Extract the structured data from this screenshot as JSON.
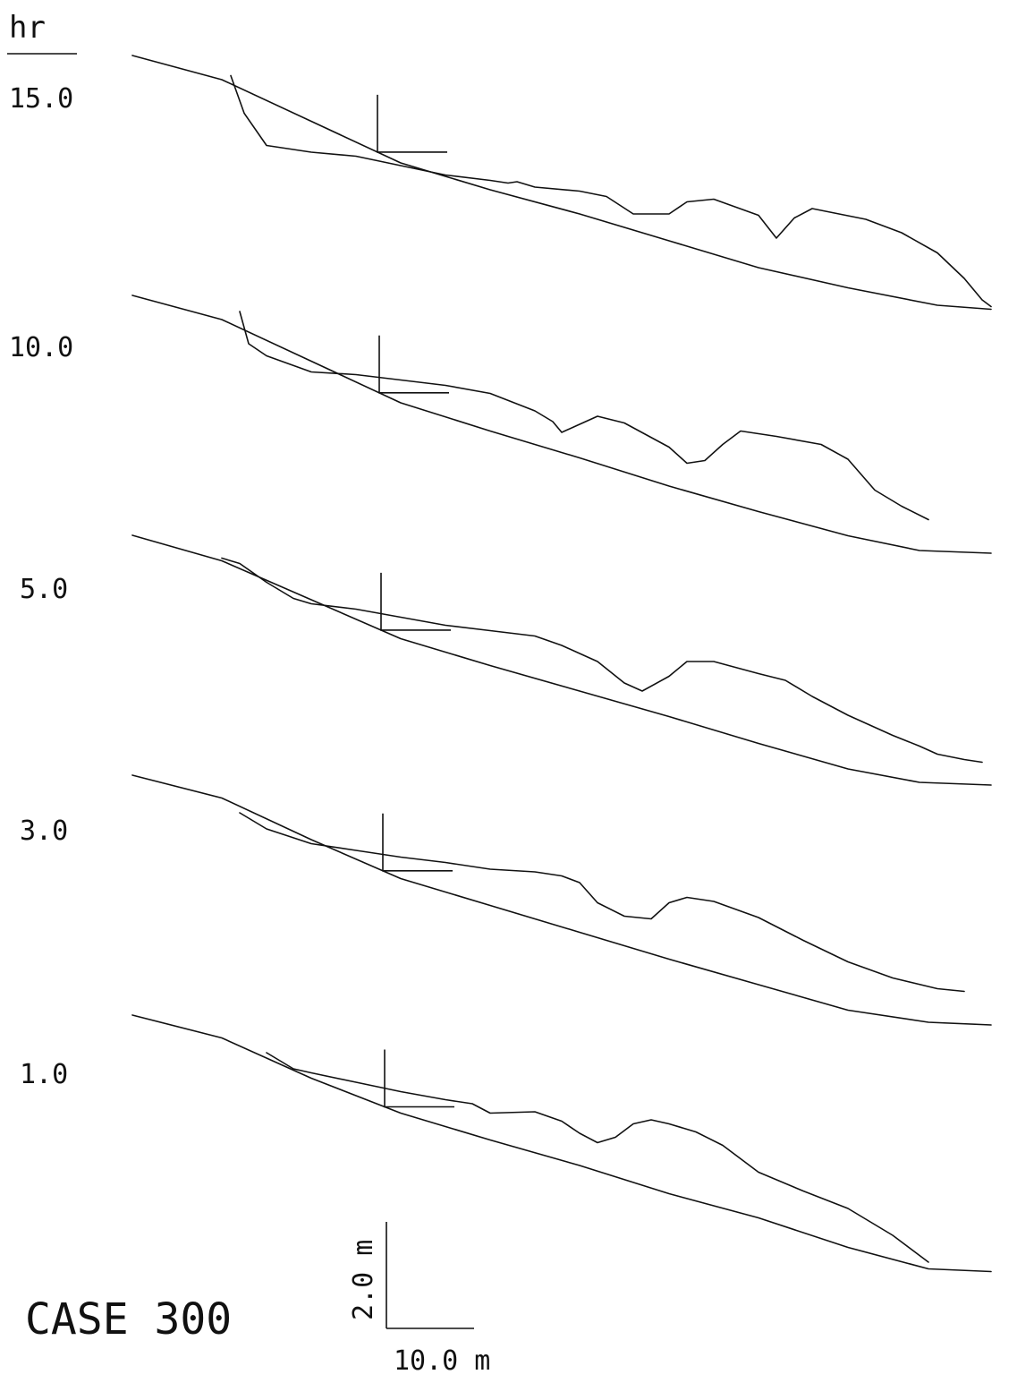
{
  "chart_data": {
    "type": "line",
    "title": "",
    "ylabel": "hr",
    "caption": "CASE 300",
    "scale_bar": {
      "vertical_label": "2.0 m",
      "horizontal_label": "10.0 m"
    },
    "panels": [
      {
        "time_label": "15.0",
        "initial_profile": [
          [
            0,
            0.0
          ],
          [
            10,
            -0.9
          ],
          [
            20,
            -2.45
          ],
          [
            30,
            -4.0
          ],
          [
            40,
            -5.0
          ],
          [
            50,
            -5.9
          ],
          [
            60,
            -6.9
          ],
          [
            70,
            -7.9
          ],
          [
            80,
            -8.65
          ],
          [
            90,
            -9.3
          ],
          [
            96,
            -9.45
          ]
        ],
        "bed_profile": [
          [
            11,
            -0.75
          ],
          [
            12.5,
            -2.15
          ],
          [
            15,
            -3.35
          ],
          [
            20,
            -3.6
          ],
          [
            25,
            -3.75
          ],
          [
            30,
            -4.1
          ],
          [
            35,
            -4.45
          ],
          [
            40,
            -4.65
          ],
          [
            42,
            -4.75
          ],
          [
            43,
            -4.7
          ],
          [
            45,
            -4.9
          ],
          [
            50,
            -5.05
          ],
          [
            53,
            -5.25
          ],
          [
            56,
            -5.9
          ],
          [
            60,
            -5.9
          ],
          [
            62,
            -5.45
          ],
          [
            65,
            -5.35
          ],
          [
            70,
            -5.95
          ],
          [
            72,
            -6.8
          ],
          [
            74,
            -6.05
          ],
          [
            76,
            -5.7
          ],
          [
            82,
            -6.1
          ],
          [
            86,
            -6.6
          ],
          [
            90,
            -7.35
          ],
          [
            93,
            -8.3
          ],
          [
            95,
            -9.1
          ],
          [
            96,
            -9.35
          ]
        ]
      },
      {
        "time_label": "10.0",
        "initial_profile": [
          [
            0,
            0.0
          ],
          [
            10,
            -0.9
          ],
          [
            20,
            -2.45
          ],
          [
            30,
            -4.0
          ],
          [
            40,
            -5.05
          ],
          [
            50,
            -6.05
          ],
          [
            60,
            -7.1
          ],
          [
            70,
            -8.05
          ],
          [
            80,
            -8.95
          ],
          [
            88,
            -9.5
          ],
          [
            96,
            -9.6
          ]
        ],
        "bed_profile": [
          [
            12,
            -0.6
          ],
          [
            13,
            -1.8
          ],
          [
            15,
            -2.25
          ],
          [
            20,
            -2.85
          ],
          [
            25,
            -2.95
          ],
          [
            30,
            -3.15
          ],
          [
            35,
            -3.35
          ],
          [
            40,
            -3.65
          ],
          [
            45,
            -4.3
          ],
          [
            47,
            -4.7
          ],
          [
            48,
            -5.1
          ],
          [
            50,
            -4.8
          ],
          [
            52,
            -4.5
          ],
          [
            55,
            -4.75
          ],
          [
            60,
            -5.65
          ],
          [
            62,
            -6.25
          ],
          [
            64,
            -6.15
          ],
          [
            66,
            -5.55
          ],
          [
            68,
            -5.05
          ],
          [
            72,
            -5.25
          ],
          [
            77,
            -5.55
          ],
          [
            80,
            -6.1
          ],
          [
            83,
            -7.25
          ],
          [
            86,
            -7.85
          ],
          [
            89,
            -8.35
          ]
        ]
      },
      {
        "time_label": "5.0",
        "initial_profile": [
          [
            0,
            0.0
          ],
          [
            10,
            -0.95
          ],
          [
            20,
            -2.4
          ],
          [
            30,
            -3.85
          ],
          [
            40,
            -4.85
          ],
          [
            50,
            -5.8
          ],
          [
            60,
            -6.75
          ],
          [
            70,
            -7.75
          ],
          [
            80,
            -8.7
          ],
          [
            88,
            -9.2
          ],
          [
            96,
            -9.3
          ]
        ],
        "bed_profile": [
          [
            10,
            -0.85
          ],
          [
            12,
            -1.05
          ],
          [
            15,
            -1.75
          ],
          [
            18,
            -2.35
          ],
          [
            20,
            -2.55
          ],
          [
            25,
            -2.75
          ],
          [
            30,
            -3.05
          ],
          [
            35,
            -3.35
          ],
          [
            40,
            -3.55
          ],
          [
            45,
            -3.75
          ],
          [
            48,
            -4.1
          ],
          [
            50,
            -4.4
          ],
          [
            52,
            -4.7
          ],
          [
            55,
            -5.5
          ],
          [
            57,
            -5.8
          ],
          [
            60,
            -5.25
          ],
          [
            62,
            -4.7
          ],
          [
            65,
            -4.7
          ],
          [
            70,
            -5.15
          ],
          [
            73,
            -5.4
          ],
          [
            76,
            -6.0
          ],
          [
            80,
            -6.7
          ],
          [
            85,
            -7.45
          ],
          [
            88,
            -7.85
          ],
          [
            90,
            -8.15
          ],
          [
            93,
            -8.35
          ],
          [
            95,
            -8.45
          ]
        ]
      },
      {
        "time_label": "3.0",
        "initial_profile": [
          [
            0,
            0.0
          ],
          [
            10,
            -0.85
          ],
          [
            20,
            -2.4
          ],
          [
            30,
            -3.85
          ],
          [
            40,
            -4.85
          ],
          [
            50,
            -5.85
          ],
          [
            60,
            -6.85
          ],
          [
            70,
            -7.8
          ],
          [
            80,
            -8.75
          ],
          [
            89,
            -9.2
          ],
          [
            96,
            -9.3
          ]
        ],
        "bed_profile": [
          [
            12,
            -1.4
          ],
          [
            15,
            -2.0
          ],
          [
            20,
            -2.55
          ],
          [
            25,
            -2.8
          ],
          [
            30,
            -3.05
          ],
          [
            35,
            -3.25
          ],
          [
            40,
            -3.5
          ],
          [
            45,
            -3.6
          ],
          [
            48,
            -3.75
          ],
          [
            50,
            -4.0
          ],
          [
            52,
            -4.75
          ],
          [
            55,
            -5.25
          ],
          [
            58,
            -5.35
          ],
          [
            60,
            -4.75
          ],
          [
            62,
            -4.55
          ],
          [
            65,
            -4.7
          ],
          [
            70,
            -5.3
          ],
          [
            75,
            -6.15
          ],
          [
            80,
            -6.95
          ],
          [
            85,
            -7.55
          ],
          [
            90,
            -7.95
          ],
          [
            93,
            -8.05
          ]
        ]
      },
      {
        "time_label": "1.0",
        "initial_profile": [
          [
            0,
            0.0
          ],
          [
            10,
            -0.85
          ],
          [
            20,
            -2.35
          ],
          [
            30,
            -3.65
          ],
          [
            40,
            -4.65
          ],
          [
            50,
            -5.6
          ],
          [
            60,
            -6.65
          ],
          [
            70,
            -7.55
          ],
          [
            80,
            -8.65
          ],
          [
            89,
            -9.45
          ],
          [
            96,
            -9.55
          ]
        ],
        "bed_profile": [
          [
            15,
            -1.4
          ],
          [
            18,
            -2.0
          ],
          [
            20,
            -2.15
          ],
          [
            25,
            -2.5
          ],
          [
            30,
            -2.85
          ],
          [
            35,
            -3.15
          ],
          [
            38,
            -3.3
          ],
          [
            40,
            -3.65
          ],
          [
            45,
            -3.6
          ],
          [
            48,
            -3.95
          ],
          [
            50,
            -4.4
          ],
          [
            52,
            -4.75
          ],
          [
            54,
            -4.55
          ],
          [
            56,
            -4.05
          ],
          [
            58,
            -3.9
          ],
          [
            60,
            -4.05
          ],
          [
            63,
            -4.35
          ],
          [
            66,
            -4.85
          ],
          [
            70,
            -5.85
          ],
          [
            75,
            -6.55
          ],
          [
            80,
            -7.2
          ],
          [
            85,
            -8.2
          ],
          [
            89,
            -9.2
          ]
        ]
      }
    ]
  }
}
